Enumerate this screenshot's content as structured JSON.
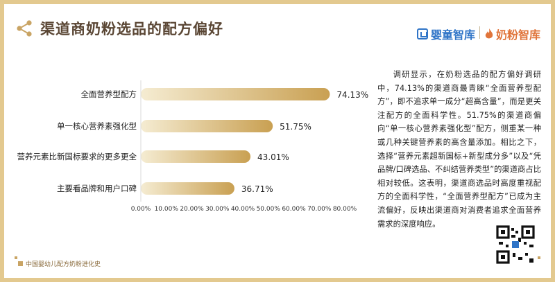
{
  "header": {
    "title": "渠道商奶粉选品的配方偏好",
    "brand1_name": "婴童智库",
    "brand2_name": "奶粉智库"
  },
  "chart_data": {
    "type": "bar",
    "orientation": "horizontal",
    "categories": [
      "全面营养型配方",
      "单一核心营养素强化型",
      "营养元素比新国标要求的更多更全",
      "主要看品牌和用户口碑"
    ],
    "values": [
      74.13,
      51.75,
      43.01,
      36.71
    ],
    "value_labels": [
      "74.13%",
      "51.75%",
      "43.01%",
      "36.71%"
    ],
    "xlim": [
      0,
      80
    ],
    "ticks": [
      "0.00%",
      "10.00%",
      "20.00%",
      "30.00%",
      "40.00%",
      "50.00%",
      "60.00%",
      "70.00%",
      "80.00%"
    ],
    "grid": false,
    "bar_color_start": "#f5ecd2",
    "bar_color_end": "#c9a052"
  },
  "analysis": {
    "text": "调研显示，在奶粉选品的配方偏好调研中，74.13%的渠道商最青睐“全面营养型配方”，即不追求单一成分“超高含量”，而是更关注配方的全面科学性。51.75%的渠道商偏向“单一核心营养素强化型”配方，侧重某一种或几种关键营养素的高含量添加。相比之下，选择“营养元素超新国标+新型成分多”以及“凭品牌/口碑选品、不纠结营养类型”的渠道商占比相对较低。这表明，渠道商选品时高度重视配方的全面科学性，“全面营养型配方”已成为主流偏好，反映出渠道商对消费者追求全面营养需求的深度响应。"
  },
  "footer": {
    "text": "中国婴幼儿配方奶粉进化史"
  },
  "colors": {
    "frame": "#e3c98f",
    "title": "#5a4634",
    "brand1": "#2f74c7",
    "brand2": "#e0743a"
  },
  "icons": [
    "share-icon",
    "brand1-logo-icon",
    "brand2-flame-icon",
    "qr-code-icon"
  ]
}
